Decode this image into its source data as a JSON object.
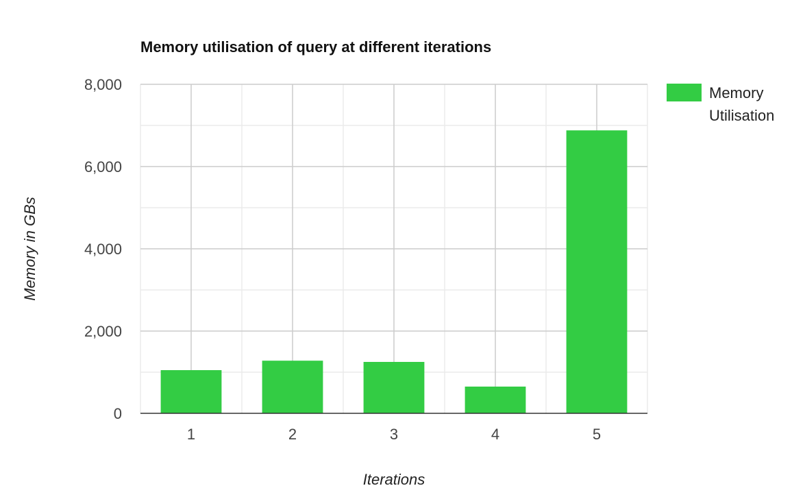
{
  "chart_data": {
    "type": "bar",
    "title": "Memory utilisation of query at different iterations",
    "xlabel": "Iterations",
    "ylabel": "Memory in GBs",
    "categories": [
      "1",
      "2",
      "3",
      "4",
      "5"
    ],
    "series": [
      {
        "name": "Memory Utilisation",
        "values": [
          1050,
          1280,
          1250,
          650,
          6880
        ],
        "color": "#33cc44"
      }
    ],
    "ylim": [
      0,
      8000
    ],
    "yticks": [
      0,
      2000,
      4000,
      6000,
      8000
    ],
    "ytick_labels": [
      "0",
      "2,000",
      "4,000",
      "6,000",
      "8,000"
    ],
    "legend": {
      "position": "right",
      "lines": [
        "Memory",
        "Utilisation"
      ]
    },
    "grid": true,
    "colors": {
      "bar": "#33cc44",
      "major_grid": "#cccccc",
      "minor_grid": "#ebebeb",
      "baseline": "#333333"
    }
  }
}
